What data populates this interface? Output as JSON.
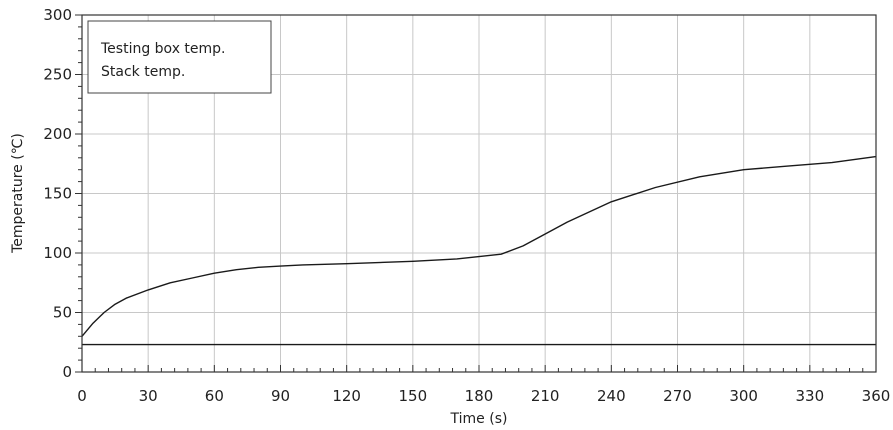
{
  "chart_data": {
    "type": "line",
    "title": "",
    "xlabel": "Time (s)",
    "ylabel": "Temperature (℃)",
    "xlim": [
      0,
      360
    ],
    "ylim": [
      0,
      300
    ],
    "x_ticks": [
      0,
      30,
      60,
      90,
      120,
      150,
      180,
      210,
      240,
      270,
      300,
      330,
      360
    ],
    "y_ticks": [
      0,
      50,
      100,
      150,
      200,
      250,
      300
    ],
    "grid": true,
    "legend_position": "top-left",
    "series": [
      {
        "name": "Testing box temp.",
        "color": "#1a1a1a",
        "x": [
          0,
          5,
          10,
          15,
          20,
          30,
          40,
          50,
          60,
          70,
          80,
          90,
          100,
          120,
          150,
          170,
          190,
          200,
          210,
          220,
          240,
          260,
          280,
          300,
          320,
          340,
          360
        ],
        "y": [
          30,
          41,
          50,
          57,
          62,
          69,
          75,
          79,
          83,
          86,
          88,
          89,
          90,
          91,
          93,
          95,
          99,
          106,
          116,
          126,
          143,
          155,
          164,
          170,
          173,
          176,
          181
        ]
      },
      {
        "name": "Stack temp.",
        "color": "#1a1a1a",
        "x": [
          0,
          360
        ],
        "y": [
          23,
          23
        ]
      }
    ]
  }
}
